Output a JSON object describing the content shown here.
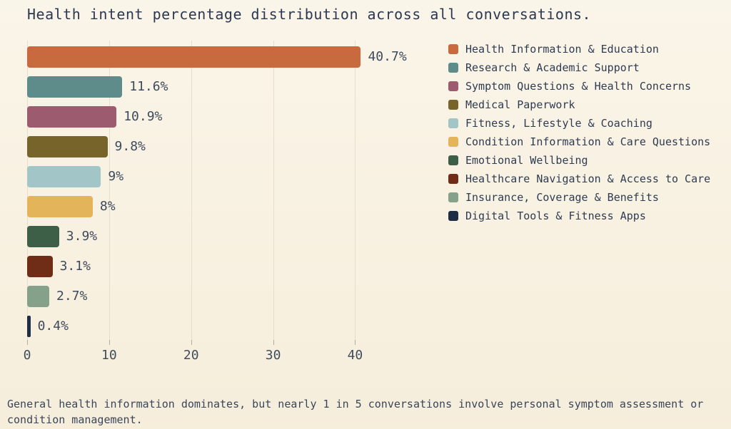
{
  "chart_data": {
    "type": "bar",
    "orientation": "horizontal",
    "title": "Health intent percentage distribution across all conversations.",
    "categories": [
      "Health Information & Education",
      "Research & Academic Support",
      "Symptom Questions & Health Concerns",
      "Medical Paperwork",
      "Fitness, Lifestyle & Coaching",
      "Condition Information & Care Questions",
      "Emotional Wellbeing",
      "Healthcare Navigation & Access to Care",
      "Insurance, Coverage & Benefits",
      "Digital Tools & Fitness Apps"
    ],
    "values": [
      40.7,
      11.6,
      10.9,
      9.8,
      9,
      8,
      3.9,
      3.1,
      2.7,
      0.4
    ],
    "value_labels": [
      "40.7%",
      "11.6%",
      "10.9%",
      "9.8%",
      "9%",
      "8%",
      "3.9%",
      "3.1%",
      "2.7%",
      "0.4%"
    ],
    "colors": [
      "#C8693E",
      "#5E8C8A",
      "#9C5B6F",
      "#77642A",
      "#A2C6C7",
      "#E3B459",
      "#3D5F48",
      "#6F2D17",
      "#85A189",
      "#1F2D45"
    ],
    "x_ticks": [
      0,
      10,
      20,
      30,
      40
    ],
    "x_tick_labels": [
      "0",
      "10",
      "20",
      "30",
      "40"
    ],
    "xlim": [
      0,
      49.8
    ],
    "grid": true,
    "legend_position": "right"
  },
  "caption": "General health information dominates, but nearly 1 in 5 conversations involve personal symptom assessment or condition management.",
  "colors": {
    "background": "#F8F1E1",
    "title_text": "#2C3850",
    "value_label_text": "#3E4A5C",
    "tick_label_text": "#414C5E",
    "legend_text": "#2F3B52",
    "caption_text": "#39455A",
    "gridline": "#E5DECB",
    "tick_mark": "#B3AC9D"
  }
}
